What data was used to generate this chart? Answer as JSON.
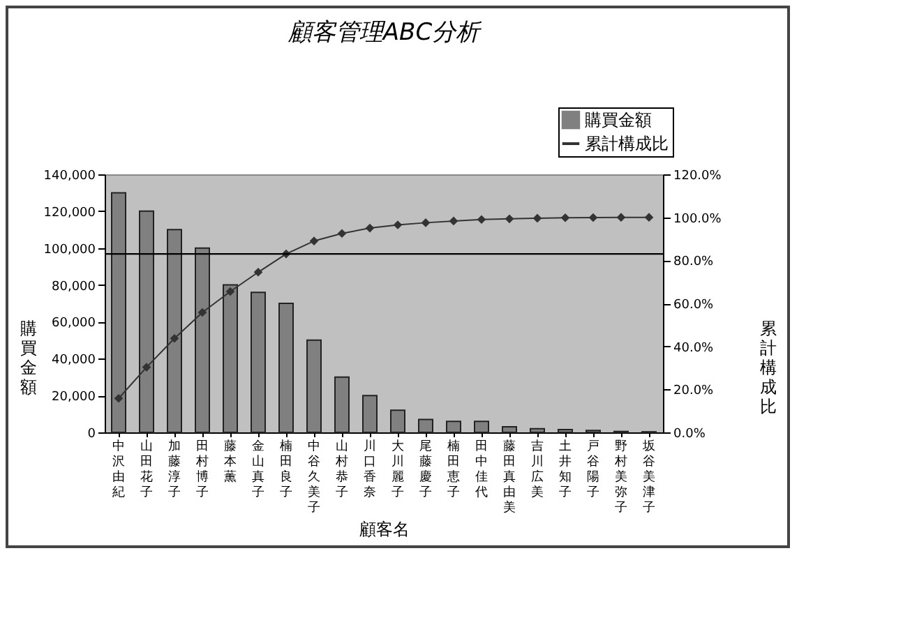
{
  "chart_data": {
    "type": "bar",
    "title": "顧客管理ABC分析",
    "xlabel": "顧客名",
    "ylabel": "購買金額",
    "y2label": "累計構成比",
    "categories": [
      "中沢由紀",
      "山田花子",
      "加藤淳子",
      "田村博子",
      "藤本薫",
      "金山真子",
      "楠田良子",
      "中谷久美子",
      "山村恭子",
      "川口香奈",
      "大川麗子",
      "尾藤慶子",
      "楠田恵子",
      "田中佳代",
      "藤田真由美",
      "吉川広美",
      "土井知子",
      "戸谷陽子",
      "野村美弥子",
      "坂谷美津子"
    ],
    "series": [
      {
        "name": "購買金額",
        "color": "#808080",
        "values": [
          130000,
          120000,
          110000,
          100000,
          80000,
          76000,
          70000,
          50000,
          30000,
          20000,
          12000,
          7000,
          6000,
          6000,
          3000,
          2000,
          1500,
          1000,
          500,
          300
        ]
      },
      {
        "name": "累計構成比",
        "type": "line",
        "axis": "y2",
        "color": "#333333",
        "values": [
          15.8,
          30.3,
          43.7,
          55.8,
          65.5,
          74.5,
          83.0,
          89.0,
          92.5,
          95.0,
          96.5,
          97.5,
          98.3,
          99.0,
          99.3,
          99.6,
          99.8,
          99.9,
          100.0,
          100.0
        ]
      }
    ],
    "ylim": [
      0,
      140000
    ],
    "yticks": [
      {
        "value": 0,
        "label": "0"
      },
      {
        "value": 20000,
        "label": "20,000"
      },
      {
        "value": 40000,
        "label": "40,000"
      },
      {
        "value": 60000,
        "label": "60,000"
      },
      {
        "value": 80000,
        "label": "80,000"
      },
      {
        "value": 100000,
        "label": "100,000"
      },
      {
        "value": 120000,
        "label": "120,000"
      },
      {
        "value": 140000,
        "label": "140,000"
      }
    ],
    "y2lim": [
      0,
      120
    ],
    "y2ticks": [
      {
        "value": 0,
        "label": "0.0%"
      },
      {
        "value": 20,
        "label": "20.0%"
      },
      {
        "value": 40,
        "label": "40.0%"
      },
      {
        "value": 60,
        "label": "60.0%"
      },
      {
        "value": 80,
        "label": "80.0%"
      },
      {
        "value": 100,
        "label": "100.0%"
      },
      {
        "value": 120,
        "label": "120.0%"
      }
    ],
    "ref_lines": [
      {
        "axis": "y2",
        "value": 83,
        "color": "#000000"
      }
    ],
    "marker": "diamond",
    "legend": "top right",
    "grid": false
  }
}
